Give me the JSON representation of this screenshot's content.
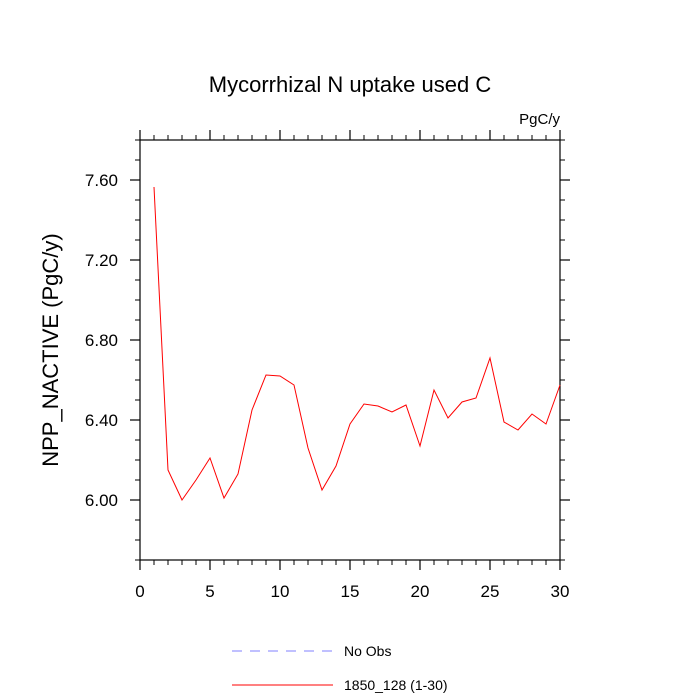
{
  "chart_data": {
    "type": "line",
    "title": "Mycorrhizal N uptake used C",
    "units_label": "PgC/y",
    "ylabel": "NPP_NACTIVE  (PgC/y)",
    "xlabel": "",
    "xlim": [
      0,
      30
    ],
    "ylim": [
      5.7,
      7.8
    ],
    "x_ticks": [
      0,
      5,
      10,
      15,
      20,
      25,
      30
    ],
    "x_tick_labels": [
      "0",
      "5",
      "10",
      "15",
      "20",
      "25",
      "30"
    ],
    "x_minor_step": 1,
    "y_ticks": [
      6.0,
      6.4,
      6.8,
      7.2,
      7.6
    ],
    "y_tick_labels": [
      "6.00",
      "6.40",
      "6.80",
      "7.20",
      "7.60"
    ],
    "y_minor_step": 0.1,
    "grid": false,
    "legend_position": "bottom",
    "series": [
      {
        "name": "1850_128 (1-30)",
        "color": "#ff0000",
        "style": "solid",
        "x": [
          1,
          2,
          3,
          4,
          5,
          6,
          7,
          8,
          9,
          10,
          11,
          12,
          13,
          14,
          15,
          16,
          17,
          18,
          19,
          20,
          21,
          22,
          23,
          24,
          25,
          26,
          27,
          28,
          29,
          30
        ],
        "values": [
          7.565,
          6.15,
          6.0,
          6.1,
          6.21,
          6.01,
          6.13,
          6.45,
          6.625,
          6.62,
          6.575,
          6.26,
          6.05,
          6.17,
          6.38,
          6.48,
          6.47,
          6.44,
          6.475,
          6.27,
          6.55,
          6.41,
          6.49,
          6.51,
          6.71,
          6.39,
          6.35,
          6.43,
          6.38,
          6.575
        ]
      }
    ],
    "legend": [
      {
        "label": "No Obs",
        "color": "#8080ff",
        "style": "dashed"
      },
      {
        "label": "1850_128 (1-30)",
        "color": "#ff0000",
        "style": "solid"
      }
    ]
  }
}
